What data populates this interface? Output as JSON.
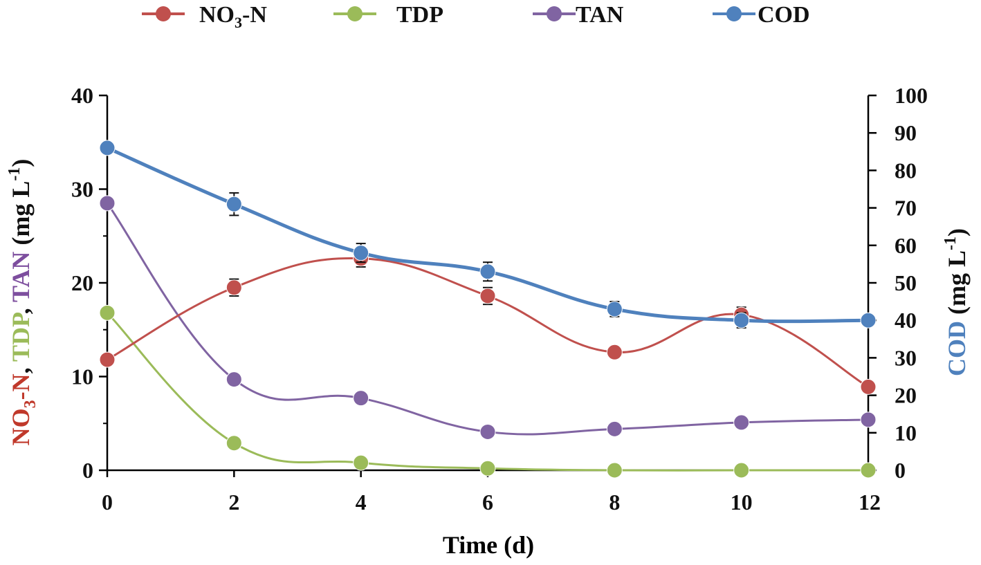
{
  "chart_data": {
    "type": "line",
    "x": [
      0,
      2,
      4,
      6,
      8,
      10,
      12
    ],
    "xlabel": "Time (d)",
    "xlim": [
      0,
      12
    ],
    "xticks": [
      "0",
      "2",
      "4",
      "6",
      "8",
      "10",
      "12"
    ],
    "ylabel_left": {
      "parts": [
        {
          "text": "NO",
          "color": "#C0392B"
        },
        {
          "text": "3",
          "color": "#C0392B",
          "sub": true
        },
        {
          "text": "-N",
          "color": "#C0392B"
        },
        {
          "text": ", ",
          "color": "#111111"
        },
        {
          "text": "TDP",
          "color": "#9BBB59"
        },
        {
          "text": ", ",
          "color": "#111111"
        },
        {
          "text": "TAN",
          "color": "#7D4E9E"
        },
        {
          "text": " (mg L",
          "color": "#111111"
        },
        {
          "text": "-1",
          "color": "#111111",
          "sup": true
        },
        {
          "text": ")",
          "color": "#111111"
        }
      ]
    },
    "ylabel_right": {
      "parts": [
        {
          "text": "COD",
          "color": "#4F81BD"
        },
        {
          "text": " (mg L",
          "color": "#111111"
        },
        {
          "text": "-1",
          "color": "#111111",
          "sup": true
        },
        {
          "text": ")",
          "color": "#111111"
        }
      ]
    },
    "ylim_left": [
      0,
      40
    ],
    "yticks_left": [
      "0",
      "10",
      "20",
      "30",
      "40"
    ],
    "ylim_right": [
      0,
      100
    ],
    "yticks_right": [
      "0",
      "10",
      "20",
      "30",
      "40",
      "50",
      "60",
      "70",
      "80",
      "90",
      "100"
    ],
    "legend_position": "top",
    "series": [
      {
        "name": "NO3-N",
        "legend_main": "NO",
        "legend_sub": "3",
        "legend_after": "-N",
        "axis": "left",
        "color": "#C0504D",
        "values": [
          11.8,
          19.5,
          22.6,
          18.6,
          12.6,
          16.6,
          8.9
        ],
        "errors": [
          0,
          0.9,
          0.9,
          0.9,
          0.5,
          0.8,
          0
        ]
      },
      {
        "name": "TDP",
        "legend_main": "TDP",
        "legend_sub": "",
        "legend_after": "",
        "axis": "left",
        "color": "#9BBB59",
        "values": [
          16.8,
          2.9,
          0.8,
          0.2,
          0.0,
          0.0,
          0.0
        ],
        "errors": [
          0,
          0,
          0,
          0,
          0,
          0,
          0
        ]
      },
      {
        "name": "TAN",
        "legend_main": "TAN",
        "legend_sub": "",
        "legend_after": "",
        "axis": "left",
        "color": "#8064A2",
        "values": [
          28.5,
          9.7,
          7.7,
          4.1,
          4.4,
          5.1,
          5.4
        ],
        "errors": [
          0,
          0,
          0,
          0,
          0,
          0,
          0
        ]
      },
      {
        "name": "COD",
        "legend_main": "COD",
        "legend_sub": "",
        "legend_after": "",
        "axis": "right",
        "color": "#4F81BD",
        "values": [
          86,
          71,
          58,
          53,
          43,
          40,
          40
        ],
        "errors": [
          0,
          3,
          2.5,
          2.5,
          2,
          2,
          0
        ]
      }
    ]
  }
}
